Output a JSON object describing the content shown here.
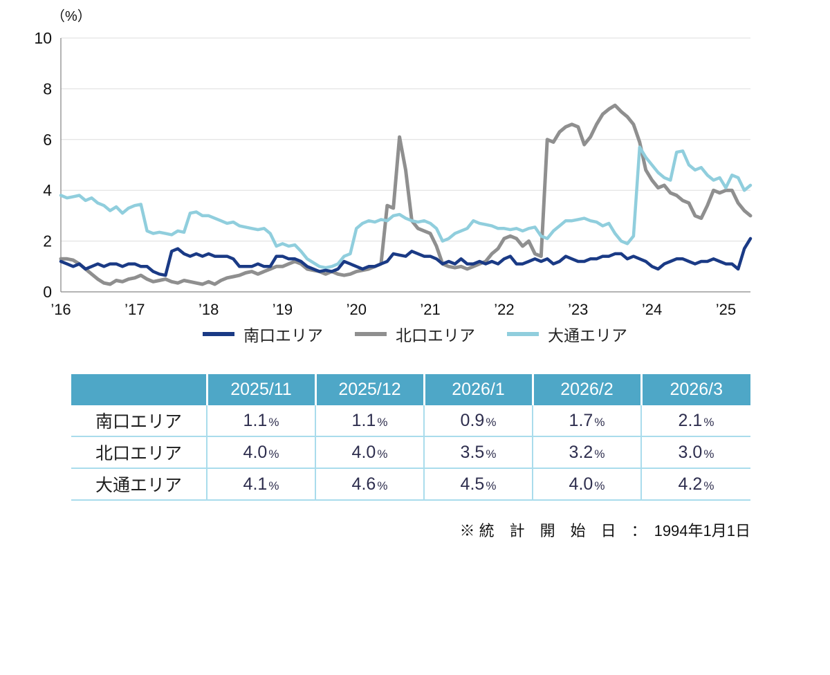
{
  "chart_data": {
    "type": "line",
    "title": "",
    "ylabel": "（%）",
    "xlabel": "",
    "ylim": [
      0,
      10
    ],
    "yticks": [
      0,
      2,
      4,
      6,
      8,
      10
    ],
    "grid": true,
    "legend_position": "bottom",
    "xtick_labels": [
      "’16",
      "’17",
      "’18",
      "’19",
      "’20",
      "’21",
      "’22",
      "’23",
      "’24",
      "’25"
    ],
    "points_per_tick": 12,
    "series": [
      {
        "name": "南口エリア",
        "color": "#1a3a85",
        "width": 4.5,
        "z": 3,
        "values": [
          1.2,
          1.1,
          1.0,
          1.1,
          0.9,
          1.0,
          1.1,
          1.0,
          1.1,
          1.1,
          1.0,
          1.1,
          1.1,
          1.0,
          1.0,
          0.8,
          0.7,
          0.65,
          1.6,
          1.7,
          1.5,
          1.4,
          1.5,
          1.4,
          1.5,
          1.4,
          1.4,
          1.4,
          1.3,
          1.0,
          1.0,
          1.0,
          1.1,
          1.0,
          1.0,
          1.4,
          1.4,
          1.3,
          1.3,
          1.2,
          1.0,
          0.9,
          0.8,
          0.85,
          0.8,
          0.9,
          1.2,
          1.1,
          1.0,
          0.9,
          1.0,
          1.0,
          1.1,
          1.2,
          1.5,
          1.45,
          1.4,
          1.6,
          1.5,
          1.4,
          1.4,
          1.3,
          1.1,
          1.2,
          1.1,
          1.3,
          1.1,
          1.1,
          1.2,
          1.1,
          1.2,
          1.1,
          1.3,
          1.4,
          1.1,
          1.1,
          1.2,
          1.3,
          1.2,
          1.3,
          1.1,
          1.2,
          1.4,
          1.3,
          1.2,
          1.2,
          1.3,
          1.3,
          1.4,
          1.4,
          1.5,
          1.5,
          1.3,
          1.4,
          1.3,
          1.2,
          1.0,
          0.9,
          1.1,
          1.2,
          1.3,
          1.3,
          1.2,
          1.1,
          1.2,
          1.2,
          1.3,
          1.2,
          1.1,
          1.1,
          0.9,
          1.7,
          2.1
        ]
      },
      {
        "name": "北口エリア",
        "color": "#8f8f8f",
        "width": 5,
        "z": 1,
        "values": [
          1.3,
          1.3,
          1.25,
          1.1,
          0.9,
          0.7,
          0.5,
          0.35,
          0.3,
          0.45,
          0.4,
          0.5,
          0.55,
          0.65,
          0.5,
          0.4,
          0.45,
          0.5,
          0.4,
          0.35,
          0.45,
          0.4,
          0.35,
          0.3,
          0.4,
          0.3,
          0.45,
          0.55,
          0.6,
          0.65,
          0.75,
          0.8,
          0.7,
          0.8,
          0.9,
          1.0,
          1.0,
          1.1,
          1.2,
          1.1,
          0.9,
          0.85,
          0.8,
          0.7,
          0.8,
          0.7,
          0.65,
          0.7,
          0.8,
          0.85,
          0.9,
          1.0,
          1.1,
          3.4,
          3.3,
          6.1,
          4.8,
          2.8,
          2.5,
          2.4,
          2.3,
          1.8,
          1.1,
          1.0,
          0.95,
          1.0,
          0.9,
          1.0,
          1.1,
          1.2,
          1.5,
          1.7,
          2.1,
          2.2,
          2.1,
          1.8,
          2.0,
          1.5,
          1.4,
          6.0,
          5.9,
          6.3,
          6.5,
          6.6,
          6.5,
          5.8,
          6.1,
          6.6,
          7.0,
          7.2,
          7.35,
          7.1,
          6.9,
          6.6,
          5.9,
          4.8,
          4.4,
          4.1,
          4.2,
          3.9,
          3.8,
          3.6,
          3.5,
          3.0,
          2.9,
          3.4,
          4.0,
          3.9,
          4.0,
          4.0,
          3.5,
          3.2,
          3.0
        ]
      },
      {
        "name": "大通エリア",
        "color": "#90cedd",
        "width": 4.5,
        "z": 2,
        "values": [
          3.8,
          3.7,
          3.75,
          3.8,
          3.6,
          3.7,
          3.5,
          3.4,
          3.2,
          3.35,
          3.1,
          3.3,
          3.4,
          3.45,
          2.4,
          2.3,
          2.35,
          2.3,
          2.25,
          2.4,
          2.35,
          3.1,
          3.15,
          3.0,
          3.0,
          2.9,
          2.8,
          2.7,
          2.75,
          2.6,
          2.55,
          2.5,
          2.45,
          2.5,
          2.3,
          1.8,
          1.9,
          1.8,
          1.85,
          1.6,
          1.3,
          1.15,
          1.0,
          0.95,
          1.0,
          1.1,
          1.4,
          1.5,
          2.5,
          2.7,
          2.8,
          2.75,
          2.85,
          2.8,
          3.0,
          3.05,
          2.9,
          2.8,
          2.75,
          2.8,
          2.7,
          2.5,
          2.0,
          2.1,
          2.3,
          2.4,
          2.5,
          2.8,
          2.7,
          2.65,
          2.6,
          2.5,
          2.5,
          2.45,
          2.5,
          2.4,
          2.5,
          2.55,
          2.2,
          2.1,
          2.4,
          2.6,
          2.8,
          2.8,
          2.85,
          2.9,
          2.8,
          2.75,
          2.6,
          2.7,
          2.3,
          2.0,
          1.9,
          2.2,
          5.7,
          5.3,
          5.0,
          4.7,
          4.5,
          4.4,
          5.5,
          5.55,
          5.0,
          4.8,
          4.9,
          4.6,
          4.4,
          4.5,
          4.1,
          4.6,
          4.5,
          4.0,
          4.2
        ]
      }
    ]
  },
  "table": {
    "header_bg": "#4ea7c7",
    "separator_color": "#a9dcec",
    "unit": "%",
    "columns": [
      "2025/11",
      "2025/12",
      "2026/1",
      "2026/2",
      "2026/3"
    ],
    "rows": [
      {
        "label": "南口エリア",
        "values": [
          "1.1",
          "1.1",
          "0.9",
          "1.7",
          "2.1"
        ]
      },
      {
        "label": "北口エリア",
        "values": [
          "4.0",
          "4.0",
          "3.5",
          "3.2",
          "3.0"
        ]
      },
      {
        "label": "大通エリア",
        "values": [
          "4.1",
          "4.6",
          "4.5",
          "4.0",
          "4.2"
        ]
      }
    ]
  },
  "note": "※ 統　計　開　始　日　：　1994年1月1日"
}
